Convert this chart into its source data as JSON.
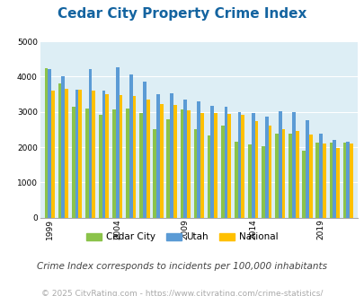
{
  "title": "Cedar City Property Crime Index",
  "subtitle": "Crime Index corresponds to incidents per 100,000 inhabitants",
  "footer": "© 2025 CityRating.com - https://www.cityrating.com/crime-statistics/",
  "years": [
    1999,
    2000,
    2001,
    2002,
    2003,
    2004,
    2005,
    2006,
    2007,
    2008,
    2009,
    2010,
    2011,
    2012,
    2013,
    2014,
    2015,
    2016,
    2017,
    2018,
    2019,
    2020,
    2021
  ],
  "cedar_city": [
    4250,
    3800,
    3150,
    3100,
    2920,
    3060,
    3100,
    2980,
    2520,
    2800,
    3080,
    2500,
    2330,
    2620,
    2150,
    2080,
    2030,
    2380,
    2380,
    1900,
    2140,
    2140,
    2140
  ],
  "utah": [
    4220,
    4020,
    3640,
    4210,
    3600,
    4260,
    4060,
    3870,
    3500,
    3520,
    3340,
    3290,
    3170,
    3150,
    3000,
    2980,
    2870,
    3020,
    3000,
    2770,
    2380,
    2200,
    2150
  ],
  "national": [
    3600,
    3660,
    3630,
    3600,
    3510,
    3480,
    3450,
    3350,
    3230,
    3200,
    3050,
    2980,
    2960,
    2950,
    2910,
    2750,
    2600,
    2500,
    2450,
    2360,
    2100,
    1980,
    2110
  ],
  "bar_width": 0.25,
  "cedar_color": "#8bc34a",
  "utah_color": "#5b9bd5",
  "national_color": "#ffc000",
  "bg_color": "#ddeef5",
  "ylim": [
    0,
    5000
  ],
  "yticks": [
    0,
    1000,
    2000,
    3000,
    4000,
    5000
  ],
  "xtick_years": [
    1999,
    2004,
    2009,
    2014,
    2019
  ],
  "title_color": "#1464a0",
  "subtitle_color": "#444444",
  "footer_color": "#aaaaaa",
  "grid_color": "#ffffff",
  "title_fontsize": 11,
  "subtitle_fontsize": 7.5,
  "footer_fontsize": 6.5
}
